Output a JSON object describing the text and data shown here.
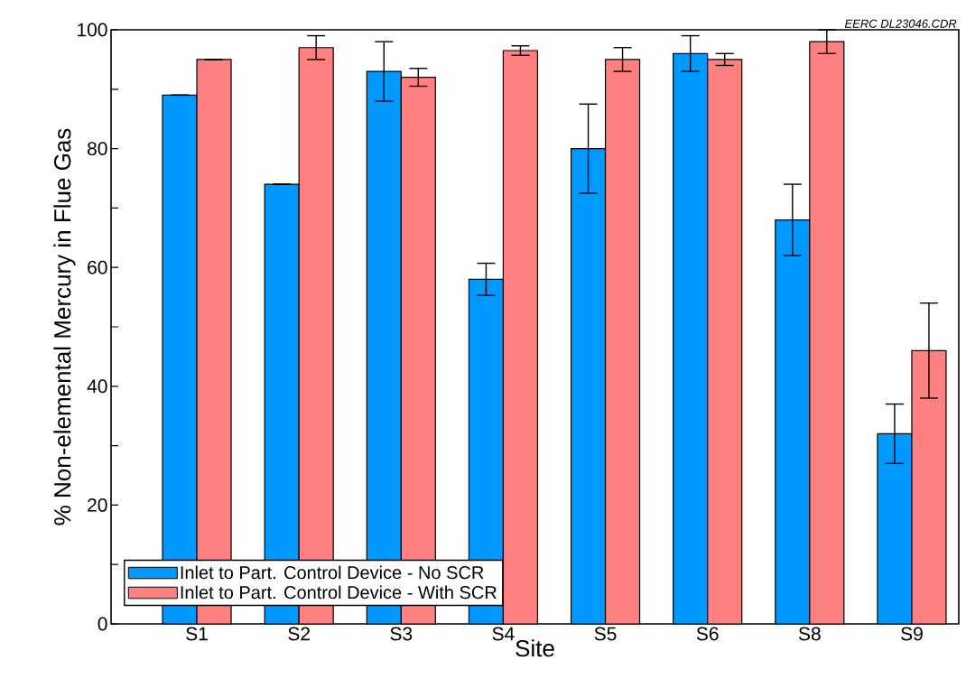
{
  "chart_data": {
    "type": "bar",
    "xlabel": "Site",
    "ylabel": "% Non-elemental Mercury in Flue Gas",
    "categories": [
      "S1",
      "S2",
      "S3",
      "S4",
      "S5",
      "S6",
      "S8",
      "S9"
    ],
    "series": [
      {
        "name": "Inlet to Part. Control Device - No SCR",
        "color": "#0099ff",
        "values": [
          89,
          74,
          93,
          58,
          80,
          96,
          68,
          32
        ],
        "errors": [
          null,
          null,
          5,
          2.7,
          7.5,
          3,
          6,
          5
        ]
      },
      {
        "name": "Inlet to Part. Control Device - With SCR",
        "color": "#ff8080",
        "values": [
          95,
          97,
          92,
          96.5,
          95,
          95,
          98,
          46
        ],
        "errors": [
          null,
          2,
          1.5,
          0.8,
          2,
          1,
          2,
          8
        ]
      }
    ],
    "ylim": [
      0,
      100
    ],
    "yticks": [
      0,
      {
        "value": 10,
        "label": null
      },
      20,
      {
        "value": 30,
        "label": null
      },
      40,
      {
        "value": 50,
        "label": null
      },
      60,
      {
        "value": 70,
        "label": null
      },
      80,
      {
        "value": 90,
        "label": null
      },
      100
    ],
    "legend": "bottom left",
    "annotations": [
      "EERC DL23046.CDR"
    ]
  }
}
